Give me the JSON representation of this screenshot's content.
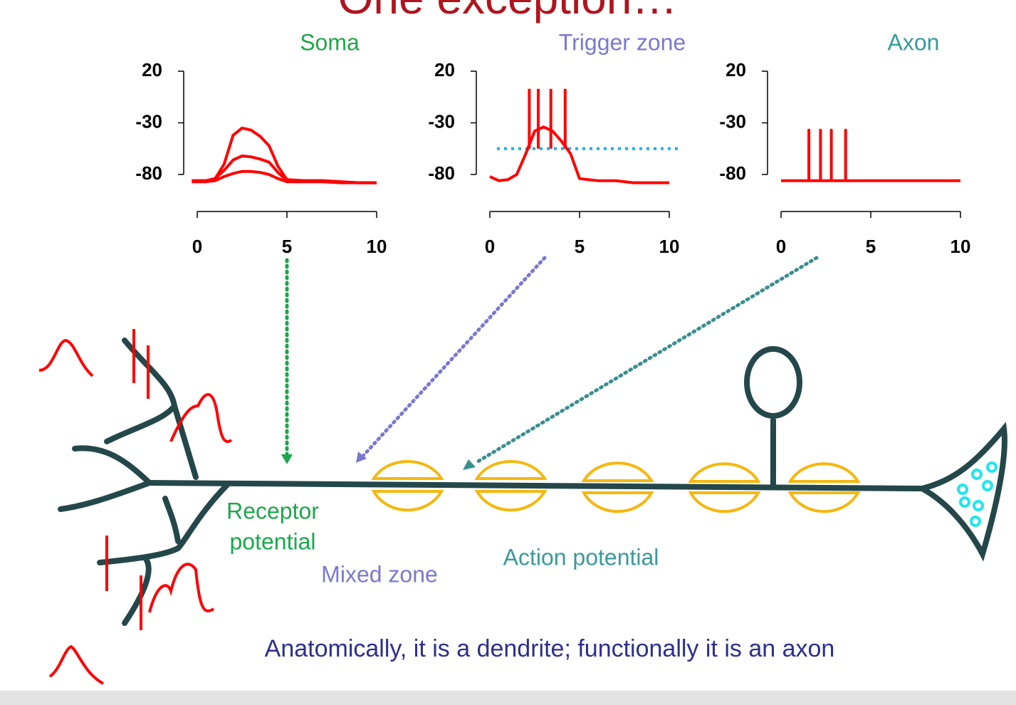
{
  "title": "One exception…",
  "chart_data": [
    {
      "type": "line",
      "title": "Soma",
      "title_color": "#22a64a",
      "xlim": [
        0,
        10
      ],
      "xticks": [
        0,
        5,
        10
      ],
      "ylim": [
        -80,
        20
      ],
      "yticks": [
        20,
        -30,
        -80
      ],
      "series": [
        {
          "color": "#ff0000",
          "x": [
            -0.3,
            0.5,
            1,
            1.5,
            2,
            2.5,
            3,
            3.5,
            4,
            4.5,
            5,
            6,
            7,
            8,
            9,
            10
          ],
          "values": [
            -86,
            -86,
            -84,
            -70,
            -42,
            -35,
            -37,
            -43,
            -52,
            -72,
            -85,
            -86,
            -86,
            -87,
            -88,
            -88
          ]
        },
        {
          "color": "#ff0000",
          "x": [
            -0.3,
            0.5,
            1,
            1.5,
            2,
            2.5,
            3,
            3.5,
            4,
            4.5,
            5,
            6,
            7,
            8,
            9,
            10
          ],
          "values": [
            -86,
            -86,
            -84,
            -76,
            -66,
            -62,
            -63,
            -65,
            -68,
            -78,
            -86,
            -86,
            -86,
            -87,
            -88,
            -88
          ]
        },
        {
          "color": "#ff0000",
          "x": [
            -0.3,
            0.5,
            1,
            1.5,
            2,
            2.5,
            3,
            3.5,
            4,
            4.5,
            5,
            6,
            7,
            8,
            9,
            10
          ],
          "values": [
            -87,
            -87,
            -86,
            -82,
            -79,
            -77,
            -77,
            -78,
            -80,
            -84,
            -87,
            -87,
            -87,
            -88,
            -88,
            -88
          ]
        }
      ]
    },
    {
      "type": "line",
      "title": "Trigger zone",
      "title_color": "#7b78d0",
      "xlim": [
        0,
        10
      ],
      "xticks": [
        0,
        5,
        10
      ],
      "ylim": [
        -80,
        20
      ],
      "yticks": [
        20,
        -30,
        -80
      ],
      "threshold": {
        "value": -55,
        "color": "#1ab0e6"
      },
      "series": [
        {
          "color": "#ff0000",
          "x": [
            0,
            0.5,
            1,
            1.5,
            2,
            2.5,
            3,
            3.5,
            4,
            4.5,
            5,
            6,
            7,
            8,
            9,
            10
          ],
          "values": [
            -82,
            -86,
            -85,
            -80,
            -60,
            -38,
            -34,
            -38,
            -48,
            -60,
            -84,
            -86,
            -86,
            -88,
            -88,
            -88
          ]
        },
        {
          "color": "#ff0000",
          "x": [
            2.2,
            2.2,
            2.2,
            2.7,
            2.7,
            2.7,
            3.4,
            3.4,
            3.4,
            4.2,
            4.2
          ],
          "values": [
            -55,
            3,
            null,
            -55,
            3,
            null,
            -55,
            3,
            null,
            -55,
            3
          ]
        }
      ]
    },
    {
      "type": "line",
      "title": "Axon",
      "title_color": "#3a9a9a",
      "xlim": [
        0,
        10
      ],
      "xticks": [
        0,
        5,
        10
      ],
      "ylim": [
        -80,
        20
      ],
      "yticks": [
        20,
        -30,
        -80
      ],
      "series": [
        {
          "color": "#ff0000",
          "x": [
            0,
            1.55,
            1.55,
            1.55,
            2.2,
            2.2,
            2.2,
            2.8,
            2.8,
            2.8,
            3.6,
            3.6,
            3.6,
            10
          ],
          "values": [
            -86,
            -86,
            -37,
            -86,
            -86,
            -37,
            -86,
            -86,
            -37,
            -86,
            -86,
            -37,
            -86,
            -86
          ]
        }
      ]
    }
  ],
  "labels": {
    "receptor": [
      "Receptor",
      "potential"
    ],
    "mixed": "Mixed zone",
    "action": "Action potential",
    "caption": "Anatomically, it is a dendrite; functionally it is an axon"
  }
}
